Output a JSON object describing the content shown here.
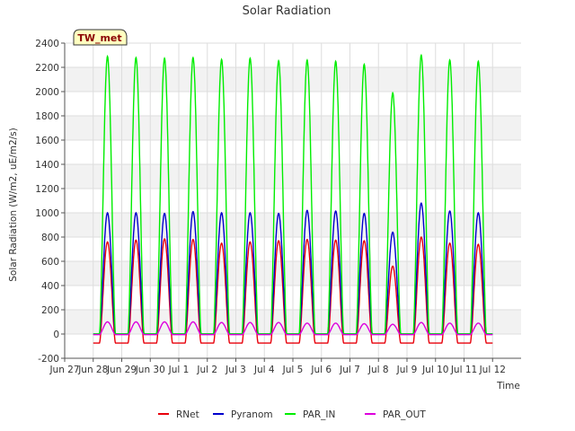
{
  "chart_data": {
    "type": "line",
    "title": "Solar Radiation",
    "xlabel": "Time",
    "ylabel": "Solar Radiation (W/m2, uE/m2/s)",
    "station_label": "TW_met",
    "xlim": [
      0,
      16
    ],
    "ylim": [
      -200,
      2400
    ],
    "yticks": [
      -200,
      0,
      200,
      400,
      600,
      800,
      1000,
      1200,
      1400,
      1600,
      1800,
      2000,
      2200,
      2400
    ],
    "xticks": [
      {
        "x": 0,
        "label": "Jun 27"
      },
      {
        "x": 1,
        "label": "Jun 28"
      },
      {
        "x": 2,
        "label": "Jun 29"
      },
      {
        "x": 3,
        "label": "Jun 30"
      },
      {
        "x": 4,
        "label": "Jul 1"
      },
      {
        "x": 5,
        "label": "Jul 2"
      },
      {
        "x": 6,
        "label": "Jul 3"
      },
      {
        "x": 7,
        "label": "Jul 4"
      },
      {
        "x": 8,
        "label": "Jul 5"
      },
      {
        "x": 9,
        "label": "Jul 6"
      },
      {
        "x": 10,
        "label": "Jul 7"
      },
      {
        "x": 11,
        "label": "Jul 8"
      },
      {
        "x": 12,
        "label": "Jul 9"
      },
      {
        "x": 13,
        "label": "Jul 10"
      },
      {
        "x": 14,
        "label": "Jul 11"
      },
      {
        "x": 15,
        "label": "Jul 12"
      }
    ],
    "grid": true,
    "legend_position": "bottom",
    "day_offset_x": 1,
    "series": [
      {
        "name": "RNet",
        "color": "#e8000b",
        "daily_peaks": [
          760,
          775,
          785,
          780,
          750,
          760,
          770,
          780,
          775,
          770,
          560,
          800,
          750,
          740
        ],
        "night_value": -75
      },
      {
        "name": "Pyranom",
        "color": "#0000cc",
        "daily_peaks": [
          1000,
          1000,
          995,
          1010,
          1000,
          1000,
          995,
          1020,
          1015,
          995,
          840,
          1080,
          1015,
          1000
        ],
        "night_value": 0
      },
      {
        "name": "PAR_IN",
        "color": "#00ee00",
        "daily_peaks": [
          2290,
          2280,
          2275,
          2280,
          2265,
          2275,
          2255,
          2260,
          2250,
          2225,
          1990,
          2300,
          2260,
          2250
        ],
        "night_value": 0
      },
      {
        "name": "PAR_OUT",
        "color": "#dd00dd",
        "daily_peaks": [
          100,
          100,
          100,
          100,
          95,
          95,
          95,
          90,
          90,
          85,
          80,
          95,
          90,
          90
        ],
        "night_value": -5
      }
    ]
  }
}
